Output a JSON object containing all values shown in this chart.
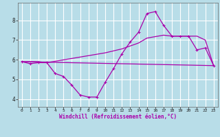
{
  "bg_color": "#b8dde8",
  "line_color": "#aa00aa",
  "grid_color": "#ffffff",
  "xlim": [
    -0.5,
    23.5
  ],
  "ylim": [
    3.6,
    8.9
  ],
  "yticks": [
    4,
    5,
    6,
    7,
    8
  ],
  "xticks": [
    0,
    1,
    2,
    3,
    4,
    5,
    6,
    7,
    8,
    9,
    10,
    11,
    12,
    13,
    14,
    15,
    16,
    17,
    18,
    19,
    20,
    21,
    22,
    23
  ],
  "xlabel": "Windchill (Refroidissement éolien,°C)",
  "line1_x": [
    0,
    1,
    2,
    3,
    4,
    5,
    6,
    7,
    8,
    9,
    10,
    11,
    12,
    13,
    14,
    15,
    16,
    17,
    18,
    19,
    20,
    21,
    22,
    23
  ],
  "line1_y": [
    5.9,
    5.8,
    5.85,
    5.85,
    5.3,
    5.15,
    4.7,
    4.2,
    4.1,
    4.1,
    4.85,
    5.55,
    6.3,
    6.9,
    7.4,
    8.35,
    8.45,
    7.75,
    7.2,
    7.2,
    7.2,
    6.5,
    6.6,
    5.7
  ],
  "line2_x": [
    0,
    23
  ],
  "line2_y": [
    5.9,
    5.7
  ],
  "line3_x": [
    0,
    2,
    3,
    10,
    11,
    12,
    13,
    14,
    15,
    17,
    18,
    19,
    20,
    21,
    22,
    23
  ],
  "line3_y": [
    5.9,
    5.9,
    5.85,
    6.35,
    6.45,
    6.55,
    6.7,
    6.85,
    7.1,
    7.25,
    7.2,
    7.2,
    7.2,
    7.2,
    7.0,
    5.7
  ]
}
